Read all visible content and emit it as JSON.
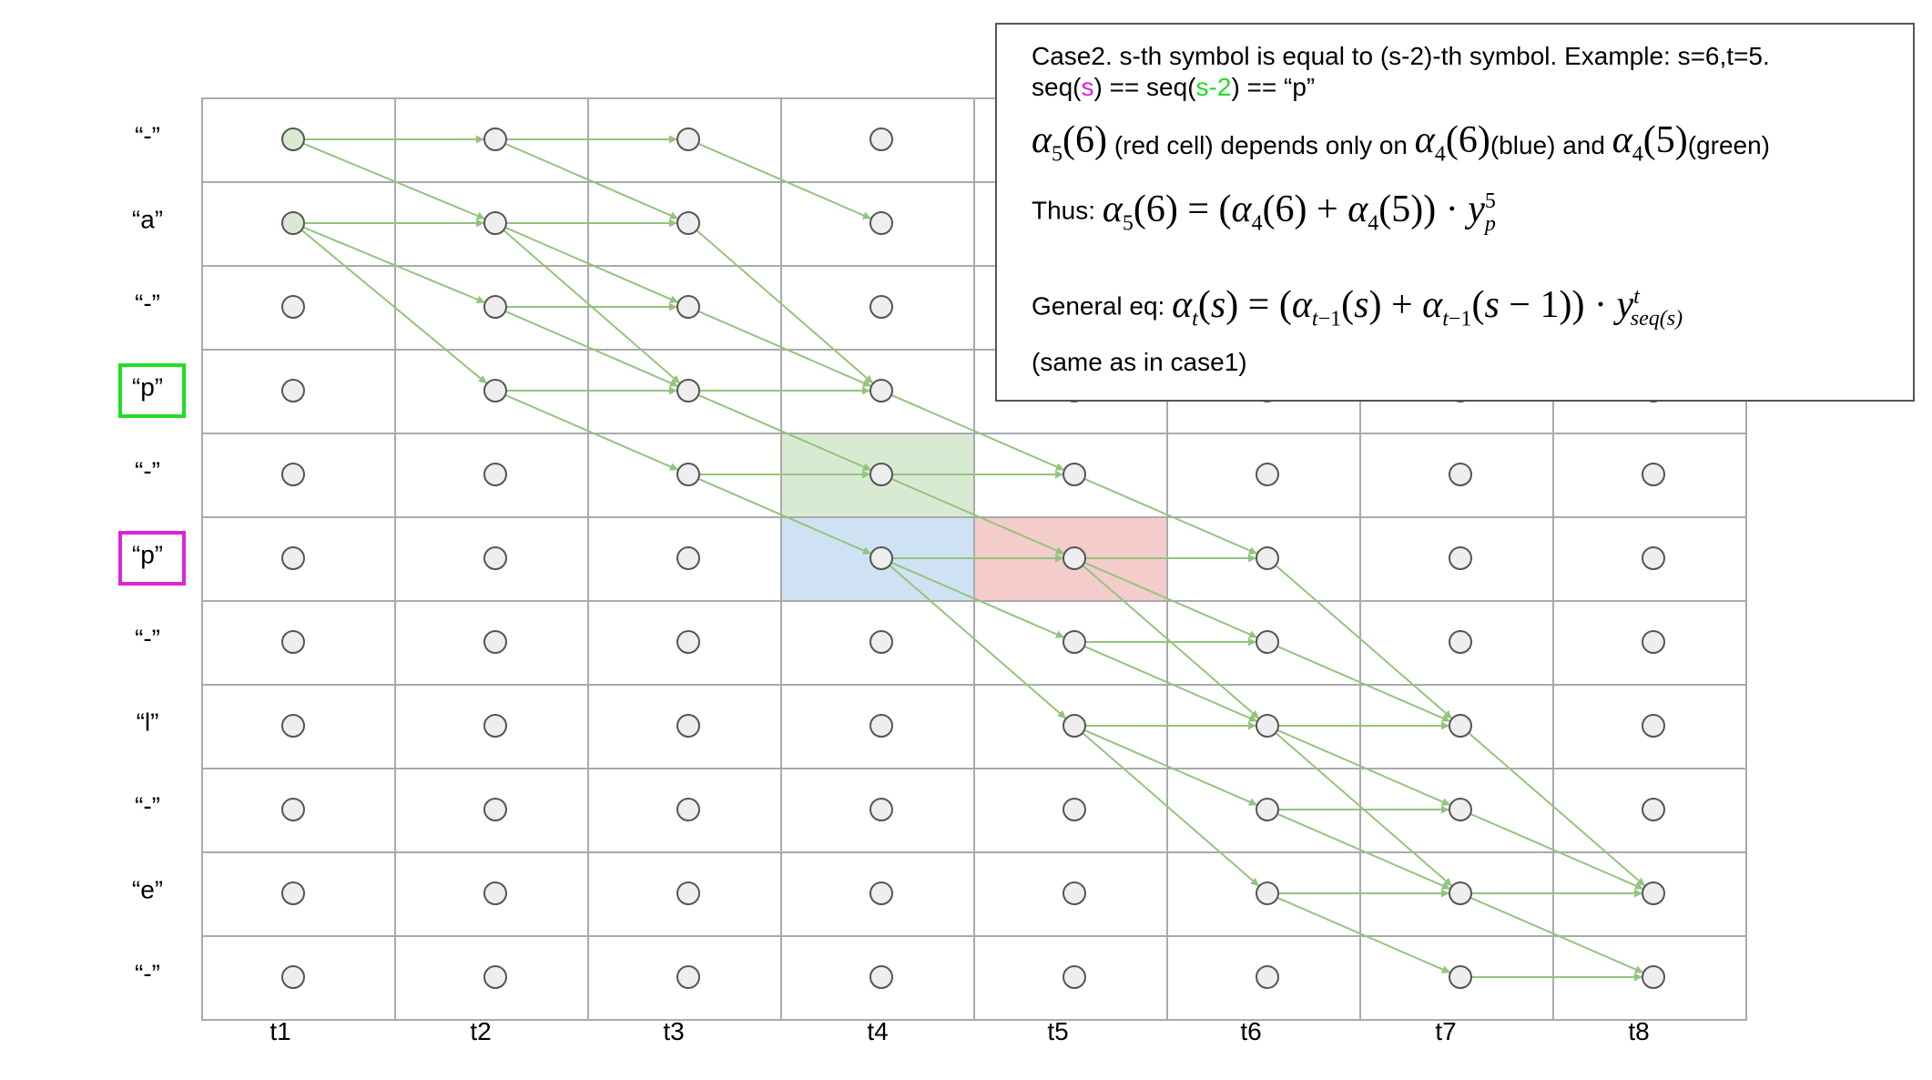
{
  "row_labels": [
    "“-”",
    "“a”",
    "“-”",
    "“p”",
    "“-”",
    "“p”",
    "“-”",
    "“l”",
    "“-”",
    "“e”",
    "“-”"
  ],
  "col_labels": [
    "t1",
    "t2",
    "t3",
    "t4",
    "t5",
    "t6",
    "t7",
    "t8"
  ],
  "row_label_boxes": [
    {
      "row": 3,
      "color": "#22dd22"
    },
    {
      "row": 5,
      "color": "#dd22dd"
    }
  ],
  "cell_highlights": [
    {
      "row": 4,
      "col": 3,
      "color": "#d9ead3",
      "meaning": "green"
    },
    {
      "row": 5,
      "col": 3,
      "color": "#cfe2f3",
      "meaning": "blue"
    },
    {
      "row": 5,
      "col": 4,
      "color": "#f4cccc",
      "meaning": "red"
    }
  ],
  "node_fill": "#eeeeee",
  "node_fill_start": "#d9ead3",
  "start_nodes": [
    [
      0,
      0
    ],
    [
      1,
      0
    ]
  ],
  "arrow_color": "#93c47d",
  "grid_color": "#aaaaaa",
  "edges": [
    [
      0,
      0,
      0,
      1
    ],
    [
      0,
      0,
      1,
      1
    ],
    [
      1,
      0,
      1,
      1
    ],
    [
      1,
      0,
      2,
      1
    ],
    [
      1,
      0,
      3,
      1
    ],
    [
      0,
      1,
      0,
      2
    ],
    [
      0,
      1,
      1,
      2
    ],
    [
      1,
      1,
      1,
      2
    ],
    [
      1,
      1,
      2,
      2
    ],
    [
      1,
      1,
      3,
      2
    ],
    [
      2,
      1,
      2,
      2
    ],
    [
      2,
      1,
      3,
      2
    ],
    [
      3,
      1,
      3,
      2
    ],
    [
      3,
      1,
      4,
      2
    ],
    [
      0,
      2,
      1,
      3
    ],
    [
      1,
      2,
      3,
      3
    ],
    [
      2,
      2,
      3,
      3
    ],
    [
      3,
      2,
      3,
      3
    ],
    [
      3,
      2,
      4,
      3
    ],
    [
      4,
      2,
      4,
      3
    ],
    [
      4,
      2,
      5,
      3
    ],
    [
      3,
      3,
      4,
      4
    ],
    [
      4,
      3,
      4,
      4
    ],
    [
      4,
      3,
      5,
      4
    ],
    [
      5,
      3,
      5,
      4
    ],
    [
      5,
      3,
      6,
      4
    ],
    [
      5,
      3,
      7,
      4
    ],
    [
      4,
      4,
      5,
      5
    ],
    [
      5,
      4,
      5,
      5
    ],
    [
      5,
      4,
      6,
      5
    ],
    [
      5,
      4,
      7,
      5
    ],
    [
      6,
      4,
      6,
      5
    ],
    [
      6,
      4,
      7,
      5
    ],
    [
      7,
      4,
      7,
      5
    ],
    [
      7,
      4,
      8,
      5
    ],
    [
      7,
      4,
      9,
      5
    ],
    [
      5,
      5,
      7,
      6
    ],
    [
      6,
      5,
      7,
      6
    ],
    [
      7,
      5,
      7,
      6
    ],
    [
      7,
      5,
      8,
      6
    ],
    [
      7,
      5,
      9,
      6
    ],
    [
      8,
      5,
      8,
      6
    ],
    [
      8,
      5,
      9,
      6
    ],
    [
      9,
      5,
      9,
      6
    ],
    [
      9,
      5,
      10,
      6
    ],
    [
      7,
      6,
      9,
      7
    ],
    [
      8,
      6,
      9,
      7
    ],
    [
      9,
      6,
      9,
      7
    ],
    [
      9,
      6,
      10,
      7
    ],
    [
      10,
      6,
      10,
      7
    ]
  ],
  "note": {
    "line1": "Case2. s-th symbol is equal to (s-2)-th symbol. Example: s=6,t=5.",
    "line2_a": "seq(",
    "line2_s": "s",
    "line2_b": ") == seq(",
    "line2_s2": "s-2",
    "line2_c": ") == “p”",
    "s_color": "#dd22dd",
    "s2_color": "#22dd22",
    "red_cell_text": "(red cell) depends only on",
    "blue_text": "(blue) and",
    "green_text": "(green)",
    "thus_label": "Thus:",
    "general_label": "General eq:",
    "same_text": "(same as in case1)"
  }
}
